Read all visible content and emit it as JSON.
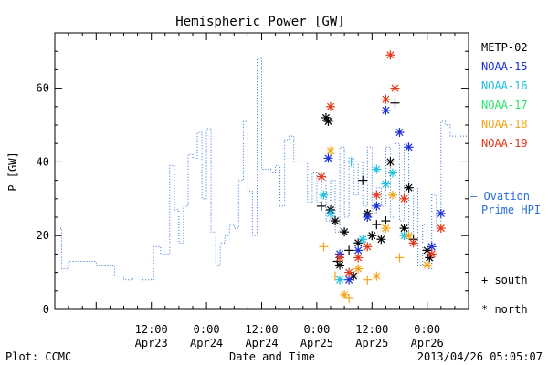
{
  "chart_data": {
    "type": "scatter",
    "title": "Hemispheric Power [GW]",
    "ylabel": "P [GW]",
    "xlabel": "Date and Time",
    "ylim": [
      0,
      75
    ],
    "xlim": [
      "2013-04-22 15:00",
      "2013-04-26 09:00"
    ],
    "yticks": [
      0,
      20,
      40,
      60
    ],
    "xticks": [
      {
        "time": "2013-04-23 12:00",
        "line1": "12:00",
        "line2": "Apr23"
      },
      {
        "time": "2013-04-24 00:00",
        "line1": "0:00",
        "line2": "Apr24"
      },
      {
        "time": "2013-04-24 12:00",
        "line1": "12:00",
        "line2": "Apr24"
      },
      {
        "time": "2013-04-25 00:00",
        "line1": "0:00",
        "line2": "Apr25"
      },
      {
        "time": "2013-04-25 12:00",
        "line1": "12:00",
        "line2": "Apr25"
      },
      {
        "time": "2013-04-26 00:00",
        "line1": "0:00",
        "line2": "Apr26"
      }
    ],
    "legend": {
      "placement": "right",
      "entries": [
        {
          "name": "METP-02",
          "color": "#000000"
        },
        {
          "name": "NOAA-15",
          "color": "#1a2fd6"
        },
        {
          "name": "NOAA-16",
          "color": "#1fc1e3"
        },
        {
          "name": "NOAA-17",
          "color": "#2ee36f"
        },
        {
          "name": "NOAA-18",
          "color": "#f3a51a"
        },
        {
          "name": "NOAA-19",
          "color": "#e3381a"
        }
      ],
      "ovation_label_1": "— Ovation",
      "ovation_label_2": "Prime HPI",
      "ovation_color": "#2a6fd8",
      "south_label": "south",
      "north_label": "north",
      "south_marker": "+",
      "north_marker": "*"
    },
    "ovation_line": {
      "name": "Ovation Prime HPI",
      "color": "#2a6fd8",
      "x": [
        "2013-04-22 15:00",
        "2013-04-22 16:30",
        "2013-04-22 18:00",
        "2013-04-22 21:00",
        "2013-04-23 00:00",
        "2013-04-23 04:00",
        "2013-04-23 06:00",
        "2013-04-23 08:00",
        "2013-04-23 10:00",
        "2013-04-23 12:30",
        "2013-04-23 14:00",
        "2013-04-23 16:00",
        "2013-04-23 17:00",
        "2013-04-23 18:00",
        "2013-04-23 19:00",
        "2013-04-23 20:00",
        "2013-04-23 21:00",
        "2013-04-23 22:00",
        "2013-04-23 23:00",
        "2013-04-24 00:00",
        "2013-04-24 01:00",
        "2013-04-24 02:00",
        "2013-04-24 03:00",
        "2013-04-24 04:00",
        "2013-04-24 05:00",
        "2013-04-24 06:00",
        "2013-04-24 07:00",
        "2013-04-24 08:00",
        "2013-04-24 09:00",
        "2013-04-24 10:00",
        "2013-04-24 11:00",
        "2013-04-24 12:00",
        "2013-04-24 13:00",
        "2013-04-24 14:00",
        "2013-04-24 15:00",
        "2013-04-24 16:00",
        "2013-04-24 17:00",
        "2013-04-24 18:00",
        "2013-04-24 19:00",
        "2013-04-24 20:00",
        "2013-04-24 21:00",
        "2013-04-24 22:00",
        "2013-04-24 23:00",
        "2013-04-25 00:00",
        "2013-04-25 01:00",
        "2013-04-25 02:00",
        "2013-04-25 03:00",
        "2013-04-25 04:00",
        "2013-04-25 05:00",
        "2013-04-25 06:00",
        "2013-04-25 07:00",
        "2013-04-25 08:00",
        "2013-04-25 09:00",
        "2013-04-25 10:00",
        "2013-04-25 11:00",
        "2013-04-25 12:00",
        "2013-04-25 13:00",
        "2013-04-25 14:00",
        "2013-04-25 15:00",
        "2013-04-25 16:00",
        "2013-04-25 17:00",
        "2013-04-25 18:00",
        "2013-04-25 19:00",
        "2013-04-25 20:00",
        "2013-04-25 21:00",
        "2013-04-25 22:00",
        "2013-04-25 23:00",
        "2013-04-26 00:00",
        "2013-04-26 01:00",
        "2013-04-26 02:00",
        "2013-04-26 03:00",
        "2013-04-26 04:00",
        "2013-04-26 05:00",
        "2013-04-26 06:00",
        "2013-04-26 07:00",
        "2013-04-26 08:00",
        "2013-04-26 09:00"
      ],
      "y": [
        22,
        11,
        13,
        13,
        12,
        9,
        8,
        9,
        8,
        17,
        15,
        39,
        27,
        18,
        28,
        42,
        41,
        48,
        30,
        49,
        21,
        12,
        18,
        20,
        23,
        22,
        35,
        51,
        32,
        20,
        68,
        38,
        38,
        37,
        39,
        28,
        46,
        47,
        40,
        40,
        40,
        29,
        37,
        29,
        36,
        24,
        35,
        21,
        44,
        25,
        41,
        31,
        40,
        28,
        44,
        26,
        33,
        28,
        44,
        25,
        45,
        24,
        45,
        20,
        33,
        12,
        23,
        11,
        31,
        22,
        51,
        50,
        47,
        47,
        47,
        47,
        47
      ]
    },
    "points": [
      {
        "sat": "METP-02",
        "hem": "south",
        "x": "2013-04-25 01:00",
        "y": 28
      },
      {
        "sat": "METP-02",
        "hem": "north",
        "x": "2013-04-25 02:00",
        "y": 52
      },
      {
        "sat": "METP-02",
        "hem": "north",
        "x": "2013-04-25 02:30",
        "y": 51
      },
      {
        "sat": "METP-02",
        "hem": "north",
        "x": "2013-04-25 03:00",
        "y": 27
      },
      {
        "sat": "METP-02",
        "hem": "north",
        "x": "2013-04-25 04:00",
        "y": 24
      },
      {
        "sat": "METP-02",
        "hem": "south",
        "x": "2013-04-25 04:30",
        "y": 13
      },
      {
        "sat": "METP-02",
        "hem": "north",
        "x": "2013-04-25 05:00",
        "y": 12
      },
      {
        "sat": "METP-02",
        "hem": "north",
        "x": "2013-04-25 06:00",
        "y": 21
      },
      {
        "sat": "METP-02",
        "hem": "south",
        "x": "2013-04-25 07:00",
        "y": 16
      },
      {
        "sat": "METP-02",
        "hem": "north",
        "x": "2013-04-25 08:00",
        "y": 9
      },
      {
        "sat": "METP-02",
        "hem": "north",
        "x": "2013-04-25 09:00",
        "y": 18
      },
      {
        "sat": "METP-02",
        "hem": "south",
        "x": "2013-04-25 10:00",
        "y": 35
      },
      {
        "sat": "METP-02",
        "hem": "north",
        "x": "2013-04-25 11:00",
        "y": 26
      },
      {
        "sat": "METP-02",
        "hem": "north",
        "x": "2013-04-25 12:00",
        "y": 20
      },
      {
        "sat": "METP-02",
        "hem": "south",
        "x": "2013-04-25 13:00",
        "y": 23
      },
      {
        "sat": "METP-02",
        "hem": "north",
        "x": "2013-04-25 14:00",
        "y": 19
      },
      {
        "sat": "METP-02",
        "hem": "south",
        "x": "2013-04-25 15:00",
        "y": 24
      },
      {
        "sat": "METP-02",
        "hem": "north",
        "x": "2013-04-25 16:00",
        "y": 40
      },
      {
        "sat": "METP-02",
        "hem": "south",
        "x": "2013-04-25 17:00",
        "y": 56
      },
      {
        "sat": "METP-02",
        "hem": "north",
        "x": "2013-04-25 19:00",
        "y": 22
      },
      {
        "sat": "METP-02",
        "hem": "north",
        "x": "2013-04-25 20:00",
        "y": 33
      },
      {
        "sat": "METP-02",
        "hem": "south",
        "x": "2013-04-25 21:00",
        "y": 19
      },
      {
        "sat": "METP-02",
        "hem": "north",
        "x": "2013-04-26 00:00",
        "y": 16
      },
      {
        "sat": "METP-02",
        "hem": "north",
        "x": "2013-04-26 00:30",
        "y": 14
      },
      {
        "sat": "NOAA-15",
        "hem": "north",
        "x": "2013-04-25 02:30",
        "y": 41
      },
      {
        "sat": "NOAA-15",
        "hem": "north",
        "x": "2013-04-25 05:00",
        "y": 15
      },
      {
        "sat": "NOAA-15",
        "hem": "north",
        "x": "2013-04-25 07:00",
        "y": 8
      },
      {
        "sat": "NOAA-15",
        "hem": "north",
        "x": "2013-04-25 09:00",
        "y": 16
      },
      {
        "sat": "NOAA-15",
        "hem": "north",
        "x": "2013-04-25 11:00",
        "y": 25
      },
      {
        "sat": "NOAA-15",
        "hem": "north",
        "x": "2013-04-25 13:00",
        "y": 28
      },
      {
        "sat": "NOAA-15",
        "hem": "north",
        "x": "2013-04-25 15:00",
        "y": 54
      },
      {
        "sat": "NOAA-15",
        "hem": "north",
        "x": "2013-04-25 18:00",
        "y": 48
      },
      {
        "sat": "NOAA-15",
        "hem": "north",
        "x": "2013-04-25 20:00",
        "y": 44
      },
      {
        "sat": "NOAA-15",
        "hem": "north",
        "x": "2013-04-26 01:00",
        "y": 17
      },
      {
        "sat": "NOAA-15",
        "hem": "north",
        "x": "2013-04-26 03:00",
        "y": 26
      },
      {
        "sat": "NOAA-16",
        "hem": "north",
        "x": "2013-04-25 01:30",
        "y": 31
      },
      {
        "sat": "NOAA-16",
        "hem": "north",
        "x": "2013-04-25 03:00",
        "y": 26
      },
      {
        "sat": "NOAA-16",
        "hem": "north",
        "x": "2013-04-25 05:00",
        "y": 8
      },
      {
        "sat": "NOAA-16",
        "hem": "south",
        "x": "2013-04-25 07:30",
        "y": 40
      },
      {
        "sat": "NOAA-16",
        "hem": "north",
        "x": "2013-04-25 10:00",
        "y": 19
      },
      {
        "sat": "NOAA-16",
        "hem": "north",
        "x": "2013-04-25 13:00",
        "y": 38
      },
      {
        "sat": "NOAA-16",
        "hem": "north",
        "x": "2013-04-25 15:00",
        "y": 34
      },
      {
        "sat": "NOAA-16",
        "hem": "north",
        "x": "2013-04-25 16:30",
        "y": 37
      },
      {
        "sat": "NOAA-16",
        "hem": "north",
        "x": "2013-04-25 19:00",
        "y": 20
      },
      {
        "sat": "NOAA-18",
        "hem": "south",
        "x": "2013-04-25 01:30",
        "y": 17
      },
      {
        "sat": "NOAA-18",
        "hem": "north",
        "x": "2013-04-25 03:00",
        "y": 43
      },
      {
        "sat": "NOAA-18",
        "hem": "south",
        "x": "2013-04-25 04:00",
        "y": 9
      },
      {
        "sat": "NOAA-18",
        "hem": "north",
        "x": "2013-04-25 06:00",
        "y": 4
      },
      {
        "sat": "NOAA-18",
        "hem": "south",
        "x": "2013-04-25 07:00",
        "y": 3
      },
      {
        "sat": "NOAA-18",
        "hem": "north",
        "x": "2013-04-25 09:00",
        "y": 11
      },
      {
        "sat": "NOAA-18",
        "hem": "south",
        "x": "2013-04-25 11:00",
        "y": 8
      },
      {
        "sat": "NOAA-18",
        "hem": "north",
        "x": "2013-04-25 13:00",
        "y": 9
      },
      {
        "sat": "NOAA-18",
        "hem": "north",
        "x": "2013-04-25 15:00",
        "y": 22
      },
      {
        "sat": "NOAA-18",
        "hem": "north",
        "x": "2013-04-25 16:30",
        "y": 31
      },
      {
        "sat": "NOAA-18",
        "hem": "south",
        "x": "2013-04-25 18:00",
        "y": 14
      },
      {
        "sat": "NOAA-18",
        "hem": "north",
        "x": "2013-04-25 20:00",
        "y": 20
      },
      {
        "sat": "NOAA-18",
        "hem": "north",
        "x": "2013-04-26 00:00",
        "y": 12
      },
      {
        "sat": "NOAA-19",
        "hem": "north",
        "x": "2013-04-25 01:00",
        "y": 36
      },
      {
        "sat": "NOAA-19",
        "hem": "north",
        "x": "2013-04-25 03:00",
        "y": 55
      },
      {
        "sat": "NOAA-19",
        "hem": "north",
        "x": "2013-04-25 05:00",
        "y": 14
      },
      {
        "sat": "NOAA-19",
        "hem": "north",
        "x": "2013-04-25 07:00",
        "y": 10
      },
      {
        "sat": "NOAA-19",
        "hem": "north",
        "x": "2013-04-25 09:00",
        "y": 14
      },
      {
        "sat": "NOAA-19",
        "hem": "north",
        "x": "2013-04-25 11:00",
        "y": 17
      },
      {
        "sat": "NOAA-19",
        "hem": "north",
        "x": "2013-04-25 13:00",
        "y": 31
      },
      {
        "sat": "NOAA-19",
        "hem": "north",
        "x": "2013-04-25 15:00",
        "y": 57
      },
      {
        "sat": "NOAA-19",
        "hem": "north",
        "x": "2013-04-25 16:00",
        "y": 69
      },
      {
        "sat": "NOAA-19",
        "hem": "north",
        "x": "2013-04-25 17:00",
        "y": 60
      },
      {
        "sat": "NOAA-19",
        "hem": "north",
        "x": "2013-04-25 19:00",
        "y": 30
      },
      {
        "sat": "NOAA-19",
        "hem": "north",
        "x": "2013-04-25 21:00",
        "y": 18
      },
      {
        "sat": "NOAA-19",
        "hem": "north",
        "x": "2013-04-26 01:00",
        "y": 15
      },
      {
        "sat": "NOAA-19",
        "hem": "north",
        "x": "2013-04-26 03:00",
        "y": 22
      }
    ]
  },
  "footer": {
    "plot_label": "Plot: CCMC",
    "timestamp": "2013/04/26 05:05:07"
  }
}
